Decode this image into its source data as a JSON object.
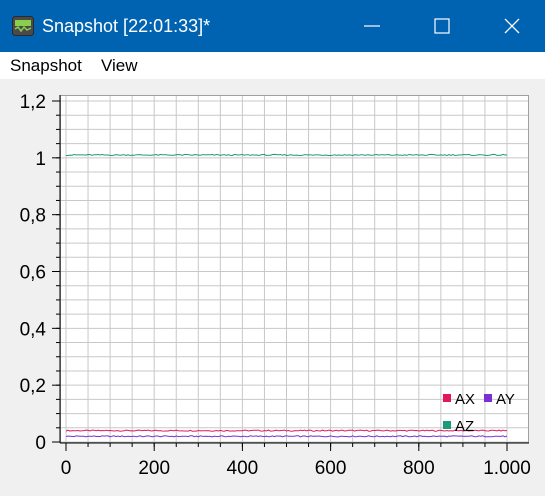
{
  "window": {
    "title": "Snapshot [22:01:33]*",
    "icon": "waveform-app-icon"
  },
  "menu": {
    "items": [
      "Snapshot",
      "View"
    ]
  },
  "chart_data": {
    "type": "line",
    "title": "",
    "xlabel": "",
    "ylabel": "",
    "xlim": [
      0,
      1000
    ],
    "ylim": [
      0,
      1.2
    ],
    "x_ticks": [
      "0",
      "200",
      "400",
      "600",
      "800",
      "1.000"
    ],
    "y_ticks": [
      "0",
      "0,2",
      "0,4",
      "0,6",
      "0,8",
      "1",
      "1,2"
    ],
    "grid": true,
    "legend_position": "bottom-right",
    "series": [
      {
        "name": "AX",
        "color": "#e0185a",
        "x": [
          0,
          1000
        ],
        "values": [
          0.04,
          0.04
        ]
      },
      {
        "name": "AY",
        "color": "#7b2fd0",
        "x": [
          0,
          1000
        ],
        "values": [
          0.02,
          0.02
        ]
      },
      {
        "name": "AZ",
        "color": "#1a9b7a",
        "x": [
          0,
          1000
        ],
        "values": [
          1.01,
          1.01
        ]
      }
    ]
  }
}
